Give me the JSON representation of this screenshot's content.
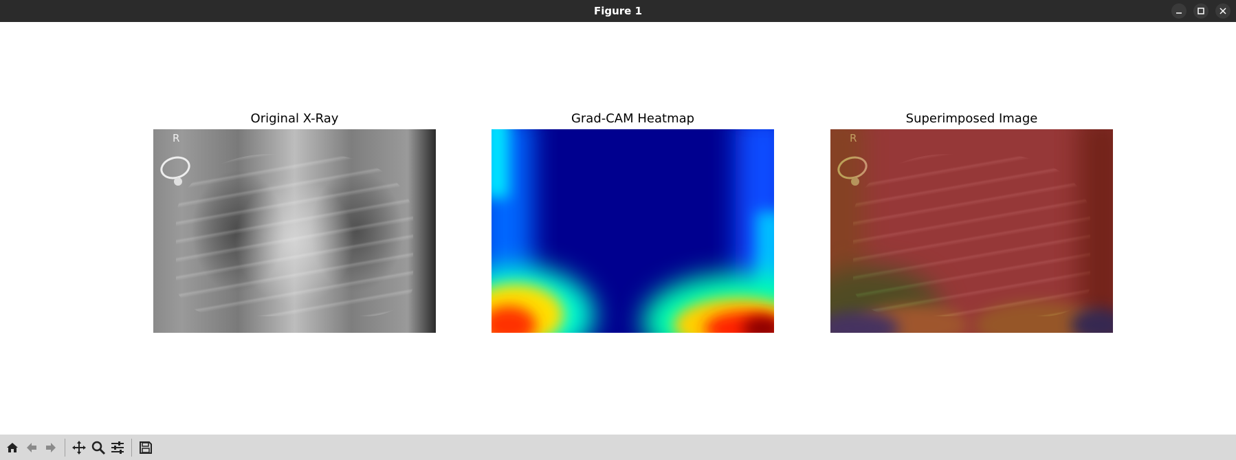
{
  "window": {
    "title": "Figure 1",
    "controls": [
      "minimize-icon",
      "maximize-icon",
      "close-icon"
    ]
  },
  "figure": {
    "subplots": [
      {
        "title": "Original X-Ray",
        "image": "chest x-ray",
        "corner_label": "R"
      },
      {
        "title": "Grad-CAM Heatmap",
        "image": "jet colormap heatmap"
      },
      {
        "title": "Superimposed Image",
        "image": "heatmap overlaid on chest x-ray",
        "corner_label": "R"
      }
    ]
  },
  "toolbar": {
    "tools": [
      {
        "name": "home-icon",
        "tooltip": ""
      },
      {
        "name": "back-arrow-icon",
        "tooltip": ""
      },
      {
        "name": "forward-arrow-icon",
        "tooltip": ""
      },
      {
        "name": "pan-icon",
        "tooltip": ""
      },
      {
        "name": "zoom-icon",
        "tooltip": ""
      },
      {
        "name": "configure-subplots-icon",
        "tooltip": ""
      },
      {
        "name": "save-icon",
        "tooltip": ""
      }
    ]
  },
  "colors": {
    "titlebar": "#2b2b2b",
    "toolbar": "#d9d9d9",
    "heatmap_low": "#00008f",
    "heatmap_high": "#8b0000"
  }
}
